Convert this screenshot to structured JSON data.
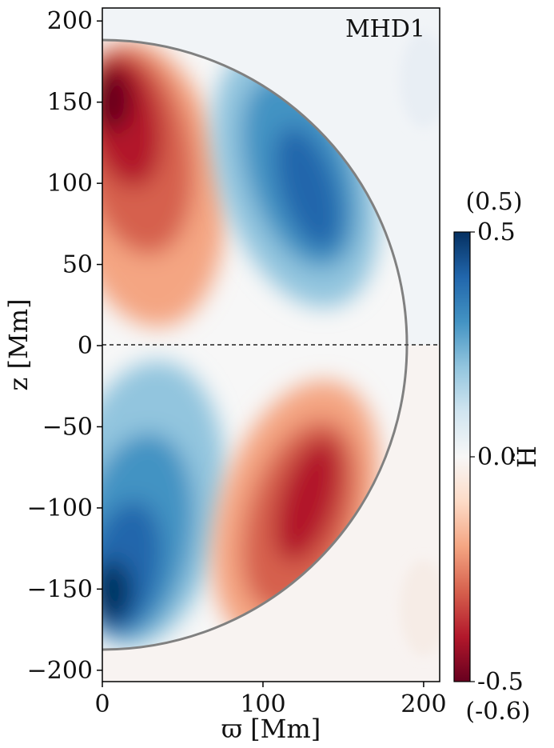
{
  "chart_data": {
    "type": "heatmap",
    "title": "",
    "panel_label": "MHD1",
    "xlabel": "ϖ [Mm]",
    "ylabel": "z [Mm]",
    "xlim": [
      0,
      210
    ],
    "ylim": [
      -207,
      208
    ],
    "x_ticks": [
      0,
      100,
      200
    ],
    "x_tick_labels": [
      "0",
      "100",
      "200"
    ],
    "y_ticks": [
      200,
      150,
      100,
      50,
      0,
      -50,
      -100,
      -150,
      -200
    ],
    "y_tick_labels": [
      "200",
      "150",
      "100",
      "50",
      "0",
      "−50",
      "−100",
      "−150",
      "−200"
    ],
    "boundary_radius": 189,
    "equator_line": "dashed",
    "colormap": "RdBu",
    "colorbar": {
      "label": "H̃",
      "range": [
        -0.5,
        0.5
      ],
      "ticks": [
        "0.5",
        "0.0",
        "-0.5"
      ],
      "max_annotation": "(0.5)",
      "min_annotation": "(-0.6)"
    },
    "field_extrema": [
      {
        "region": "north-inner",
        "x": 8,
        "z": 150,
        "value": -0.5
      },
      {
        "region": "north-outer",
        "x": 125,
        "z": 95,
        "value": 0.5
      },
      {
        "region": "south-inner",
        "x": 8,
        "z": -150,
        "value": 0.5
      },
      {
        "region": "south-outer",
        "x": 125,
        "z": -95,
        "value": -0.5
      }
    ]
  },
  "colors": {
    "red_dark": "#67001f",
    "blue_dark": "#053061",
    "neutral": "#f7f7f7",
    "boundary": "#808080",
    "equator": "#555555"
  }
}
